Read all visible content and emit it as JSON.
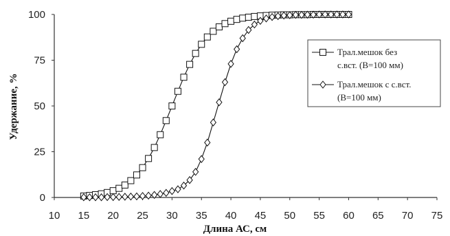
{
  "chart_data": {
    "type": "line",
    "xlabel": "Длина АС, см",
    "ylabel": "Удержание, %",
    "xlim": [
      10,
      75
    ],
    "ylim": [
      0,
      100
    ],
    "xticks": [
      "10",
      "15",
      "20",
      "25",
      "30",
      "35",
      "40",
      "45",
      "50",
      "55",
      "60",
      "65",
      "70",
      "75"
    ],
    "yticks": [
      "0",
      "25",
      "50",
      "75",
      "100"
    ],
    "grid": false,
    "legend_position": "right",
    "series": [
      {
        "name_lines": [
          "Трал.мешок без",
          "с.вст. (B=100 мм)"
        ],
        "marker": "square",
        "x": [
          15,
          16,
          17,
          18,
          19,
          20,
          21,
          22,
          23,
          24,
          25,
          26,
          27,
          28,
          29,
          30,
          31,
          32,
          33,
          34,
          35,
          36,
          37,
          38,
          39,
          40,
          41,
          42,
          43,
          44,
          45,
          46,
          47,
          48,
          49,
          50,
          51,
          52,
          53,
          54,
          55,
          56,
          57,
          58,
          59,
          60
        ],
        "y": [
          0.8,
          1.1,
          1.5,
          2.0,
          2.7,
          3.7,
          5.0,
          6.8,
          9.2,
          12.3,
          16.3,
          21.3,
          27.3,
          34.3,
          42.0,
          50.0,
          58.0,
          65.7,
          72.7,
          78.7,
          83.7,
          87.7,
          90.8,
          93.2,
          95.0,
          96.3,
          97.3,
          98.0,
          98.5,
          98.9,
          99.2,
          99.4,
          99.6,
          99.7,
          99.8,
          99.8,
          99.9,
          99.9,
          99.9,
          100,
          100,
          100,
          100,
          100,
          100,
          100
        ]
      },
      {
        "name_lines": [
          "Трал.мешок с с.вст.",
          "(B=100 мм)"
        ],
        "marker": "diamond",
        "x": [
          15,
          16,
          17,
          18,
          19,
          20,
          21,
          22,
          23,
          24,
          25,
          26,
          27,
          28,
          29,
          30,
          31,
          32,
          33,
          34,
          35,
          36,
          37,
          38,
          39,
          40,
          41,
          42,
          43,
          44,
          45,
          46,
          47,
          48,
          49,
          50,
          51,
          52,
          53,
          54,
          55,
          56,
          57,
          58,
          59,
          60
        ],
        "y": [
          0.1,
          0.1,
          0.1,
          0.1,
          0.2,
          0.2,
          0.3,
          0.4,
          0.5,
          0.6,
          0.8,
          1.0,
          1.4,
          1.9,
          2.5,
          3.5,
          4.5,
          6.5,
          9.5,
          14.0,
          21.0,
          30.0,
          41.0,
          52.0,
          63.0,
          73.0,
          81.0,
          87.0,
          91.5,
          94.5,
          96.5,
          97.8,
          98.6,
          99.1,
          99.4,
          99.6,
          99.8,
          99.8,
          99.9,
          99.9,
          100,
          100,
          100,
          100,
          100,
          100
        ]
      }
    ]
  }
}
